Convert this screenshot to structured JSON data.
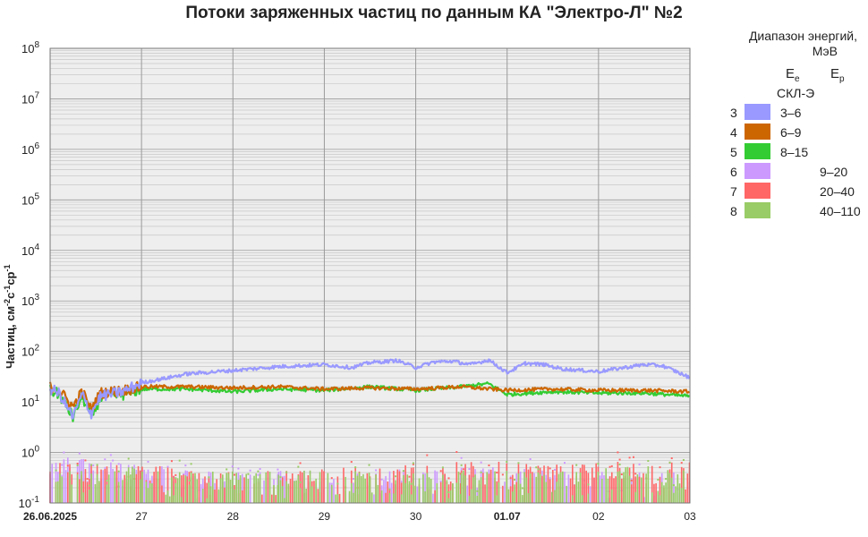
{
  "title": "Потоки заряженных частиц по данным КА \"Электро-Л\" №2",
  "legend": {
    "heading_line1": "Диапазон энергий,",
    "heading_line2": "МэВ",
    "ee_label": "E",
    "ee_sub": "e",
    "ep_label": "E",
    "ep_sub": "p",
    "instrument": "СКЛ-Э"
  },
  "chart_data": {
    "type": "scatter",
    "title": "Потоки заряженных частиц по данным КА \"Электро-Л\" №2",
    "ylabel": "Частиц, см-2с-1ср-1",
    "ylabel_parts": {
      "base": "Частиц, см",
      "e1": "-2",
      "s": "с",
      "e2": "-1",
      "c": "ср",
      "e3": "-1"
    },
    "yscale": "log",
    "ylim": [
      0.1,
      100000000
    ],
    "y_ticks": [
      {
        "base": "10",
        "exp": "-1"
      },
      {
        "base": "10",
        "exp": "0"
      },
      {
        "base": "10",
        "exp": "1"
      },
      {
        "base": "10",
        "exp": "2"
      },
      {
        "base": "10",
        "exp": "3"
      },
      {
        "base": "10",
        "exp": "4"
      },
      {
        "base": "10",
        "exp": "5"
      },
      {
        "base": "10",
        "exp": "6"
      },
      {
        "base": "10",
        "exp": "7"
      },
      {
        "base": "10",
        "exp": "8"
      }
    ],
    "xlim_days": [
      0,
      7
    ],
    "x_tick_labels": [
      {
        "text": "26.06.2025",
        "bold": true
      },
      {
        "text": "27",
        "bold": false
      },
      {
        "text": "28",
        "bold": false
      },
      {
        "text": "29",
        "bold": false
      },
      {
        "text": "30",
        "bold": false
      },
      {
        "text": "01.07",
        "bold": true
      },
      {
        "text": "02",
        "bold": false
      },
      {
        "text": "03",
        "bold": false
      }
    ],
    "grid": true,
    "colors": {
      "background": "#eeeeee",
      "grid_major": "#9a9a9a",
      "grid_minor": "#c8c8c8"
    },
    "series": [
      {
        "channel": "3",
        "energy_range": "3–6",
        "particle": "e",
        "color": "#9999ff",
        "x": [
          0,
          0.1,
          0.25,
          0.35,
          0.45,
          0.55,
          0.8,
          1.0,
          1.2,
          1.5,
          2.0,
          2.5,
          3.0,
          3.3,
          3.5,
          3.8,
          4.0,
          4.2,
          4.4,
          4.6,
          4.8,
          5.0,
          5.2,
          5.4,
          5.6,
          6.0,
          6.5,
          6.7,
          6.85,
          7.0
        ],
        "values": [
          18,
          15,
          5,
          14,
          6,
          13,
          16,
          24,
          28,
          36,
          42,
          50,
          55,
          48,
          60,
          66,
          48,
          62,
          64,
          55,
          68,
          38,
          58,
          55,
          45,
          40,
          55,
          52,
          40,
          30
        ]
      },
      {
        "channel": "4",
        "energy_range": "6–9",
        "particle": "e",
        "color": "#cc6600",
        "x": [
          0,
          0.1,
          0.25,
          0.35,
          0.45,
          0.55,
          0.8,
          1.0,
          1.5,
          2.0,
          2.5,
          3.0,
          3.5,
          4.0,
          4.5,
          5.0,
          5.5,
          6.0,
          6.5,
          7.0
        ],
        "values": [
          20,
          17,
          8,
          16,
          7,
          15,
          17,
          20,
          20,
          19,
          20,
          18,
          19,
          18,
          20,
          17,
          18,
          17,
          17,
          16
        ]
      },
      {
        "channel": "5",
        "energy_range": "8–15",
        "particle": "e",
        "color": "#33cc33",
        "x": [
          0,
          0.1,
          0.25,
          0.35,
          0.45,
          0.55,
          0.8,
          1.0,
          1.5,
          2.0,
          2.5,
          3.0,
          3.5,
          4.0,
          4.5,
          4.8,
          5.0,
          5.5,
          6.0,
          6.5,
          7.0
        ],
        "values": [
          17,
          14,
          5,
          13,
          5,
          12,
          14,
          18,
          18,
          16,
          18,
          17,
          20,
          17,
          20,
          23,
          14,
          16,
          15,
          15,
          13
        ]
      },
      {
        "channel": "6",
        "energy_range": "9–20",
        "particle": "p",
        "color": "#cc99ff",
        "x": [
          0,
          0.3,
          0.6,
          0.9,
          1.5,
          2.5,
          3.5,
          4.5,
          5.5,
          6.5,
          7.0
        ],
        "values": [
          0.35,
          0.4,
          0.3,
          0.3,
          0.2,
          0.2,
          0.2,
          0.25,
          0.2,
          0.2,
          0.2
        ]
      },
      {
        "channel": "7",
        "energy_range": "20–40",
        "particle": "p",
        "color": "#ff6666",
        "x": [
          0,
          0.3,
          0.6,
          0.9,
          1.5,
          2.5,
          3.5,
          4.5,
          5.5,
          6.5,
          7.0
        ],
        "values": [
          0.3,
          0.3,
          0.25,
          0.3,
          0.2,
          0.2,
          0.25,
          0.3,
          0.3,
          0.3,
          0.3
        ]
      },
      {
        "channel": "8",
        "energy_range": "40–110",
        "particle": "p",
        "color": "#99cc66",
        "x": [
          0,
          0.3,
          0.6,
          0.9,
          1.5,
          2.5,
          3.5,
          4.5,
          5.5,
          6.5,
          7.0
        ],
        "values": [
          0.2,
          0.2,
          0.2,
          0.25,
          0.2,
          0.2,
          0.2,
          0.2,
          0.2,
          0.25,
          0.2
        ]
      }
    ]
  }
}
